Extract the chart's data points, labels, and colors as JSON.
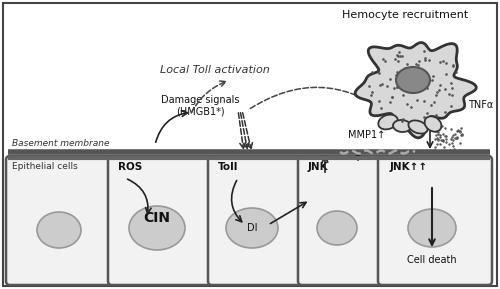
{
  "bg_color": "#ffffff",
  "border_color": "#444444",
  "cell_fill": "#f0f0f0",
  "cell_stroke": "#555555",
  "nucleus_fill": "#cccccc",
  "basement_color": "#555555",
  "hemocyte_fill": "#d8d8d8",
  "hemocyte_nucleus_fill": "#888888",
  "labels": {
    "basement_membrane": "Basement membrane",
    "epithelial_cells": "Epithelial cells",
    "hemocyte_recruitment": "Hemocyte recruitment",
    "local_toll": "Local Toll activation",
    "damage_signals": "Damage signals",
    "hmgb1": "(HMGB1*)",
    "mmp1": "MMP1↑",
    "tnfa": "TNFα",
    "ros": "ROS",
    "cin": "CIN",
    "toll": "Toll",
    "dl": "DI",
    "jnk": "JNK",
    "jnk_up": "JNK↑↑",
    "cell_death": "Cell death"
  }
}
